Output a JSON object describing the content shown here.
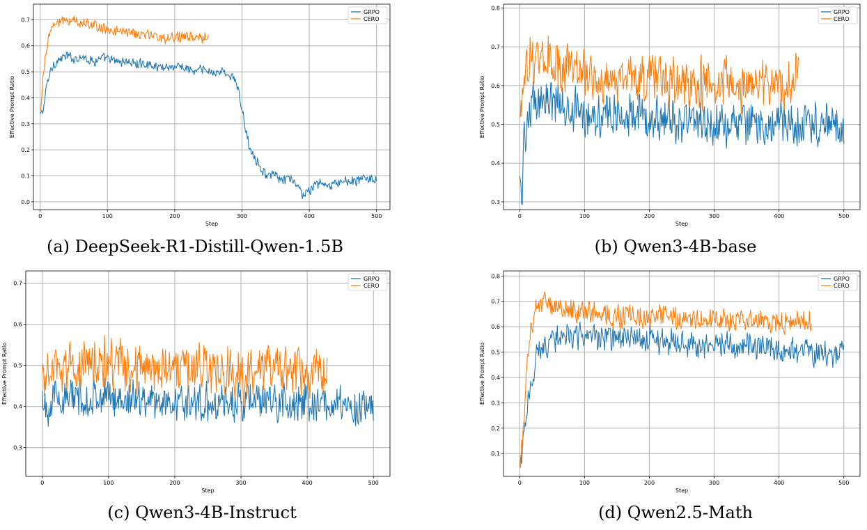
{
  "colors": {
    "grpo": "#1f77b4",
    "cero": "#ff7f0e",
    "grid": "#b0b0b0"
  },
  "chart_data": [
    {
      "type": "line",
      "caption": "(a) DeepSeek-R1-Distill-Qwen-1.5B",
      "xlabel": "Step",
      "ylabel": "Effective Prompt Ratio",
      "xlim": [
        -10,
        520
      ],
      "ylim": [
        -0.03,
        0.76
      ],
      "xticks": [
        0,
        100,
        200,
        300,
        400,
        500
      ],
      "yticks": [
        0.0,
        0.1,
        0.2,
        0.3,
        0.4,
        0.5,
        0.6,
        0.7
      ],
      "ytick_labels": [
        "0.0",
        "0.1",
        "0.2",
        "0.3",
        "0.4",
        "0.5",
        "0.6",
        "0.7"
      ],
      "grid": true,
      "legend_position": "top-right",
      "series": [
        {
          "name": "GRPO",
          "color": "#1f77b4",
          "x": [
            0,
            5,
            10,
            15,
            20,
            30,
            40,
            50,
            60,
            70,
            80,
            90,
            100,
            110,
            120,
            130,
            140,
            150,
            160,
            170,
            180,
            190,
            200,
            210,
            220,
            230,
            240,
            250,
            260,
            270,
            280,
            290,
            300,
            310,
            320,
            330,
            340,
            350,
            360,
            370,
            380,
            390,
            400,
            410,
            420,
            430,
            440,
            450,
            460,
            470,
            480,
            490,
            500
          ],
          "y": [
            0.33,
            0.36,
            0.45,
            0.5,
            0.53,
            0.55,
            0.56,
            0.55,
            0.56,
            0.55,
            0.54,
            0.55,
            0.55,
            0.54,
            0.54,
            0.54,
            0.53,
            0.53,
            0.53,
            0.52,
            0.52,
            0.52,
            0.52,
            0.52,
            0.51,
            0.5,
            0.51,
            0.5,
            0.5,
            0.5,
            0.49,
            0.47,
            0.36,
            0.22,
            0.17,
            0.12,
            0.1,
            0.1,
            0.08,
            0.09,
            0.07,
            0.03,
            0.04,
            0.07,
            0.07,
            0.06,
            0.07,
            0.08,
            0.08,
            0.08,
            0.09,
            0.09,
            0.08
          ]
        },
        {
          "name": "CERO",
          "color": "#ff7f0e",
          "x": [
            0,
            5,
            10,
            15,
            20,
            30,
            40,
            50,
            60,
            70,
            80,
            90,
            100,
            110,
            120,
            130,
            140,
            150,
            160,
            170,
            180,
            190,
            200,
            210,
            220,
            230,
            240,
            250
          ],
          "y": [
            0.34,
            0.5,
            0.6,
            0.66,
            0.68,
            0.69,
            0.7,
            0.7,
            0.69,
            0.68,
            0.68,
            0.67,
            0.66,
            0.66,
            0.65,
            0.65,
            0.65,
            0.64,
            0.64,
            0.64,
            0.63,
            0.63,
            0.64,
            0.63,
            0.63,
            0.63,
            0.63,
            0.64
          ]
        }
      ]
    },
    {
      "type": "line",
      "caption": "(b) Qwen3-4B-base",
      "xlabel": "Step",
      "ylabel": "Effective Prompt Ratio",
      "xlim": [
        -25,
        525
      ],
      "ylim": [
        0.28,
        0.81
      ],
      "xticks": [
        0,
        100,
        200,
        300,
        400,
        500
      ],
      "yticks": [
        0.3,
        0.4,
        0.5,
        0.6,
        0.7,
        0.8
      ],
      "ytick_labels": [
        "0.3",
        "0.4",
        "0.5",
        "0.6",
        "0.7",
        "0.8"
      ],
      "grid": true,
      "legend_position": "top-right",
      "series": [
        {
          "name": "GRPO",
          "color": "#1f77b4",
          "x": [
            0,
            3,
            6,
            10,
            15,
            20,
            30,
            40,
            50,
            60,
            70,
            80,
            90,
            100,
            120,
            140,
            160,
            180,
            200,
            220,
            240,
            260,
            280,
            300,
            320,
            340,
            360,
            380,
            400,
            420,
            440,
            460,
            480,
            500
          ],
          "y": [
            0.36,
            0.3,
            0.45,
            0.5,
            0.53,
            0.55,
            0.56,
            0.57,
            0.56,
            0.55,
            0.54,
            0.54,
            0.53,
            0.53,
            0.53,
            0.52,
            0.52,
            0.52,
            0.52,
            0.51,
            0.51,
            0.51,
            0.51,
            0.5,
            0.5,
            0.5,
            0.5,
            0.5,
            0.5,
            0.5,
            0.5,
            0.5,
            0.5,
            0.47
          ]
        },
        {
          "name": "CERO",
          "color": "#ff7f0e",
          "x": [
            0,
            3,
            6,
            10,
            15,
            20,
            30,
            40,
            50,
            60,
            70,
            80,
            90,
            100,
            120,
            140,
            160,
            180,
            200,
            220,
            240,
            260,
            280,
            300,
            320,
            340,
            360,
            380,
            400,
            420,
            430
          ],
          "y": [
            0.52,
            0.55,
            0.62,
            0.66,
            0.67,
            0.68,
            0.67,
            0.66,
            0.67,
            0.65,
            0.64,
            0.64,
            0.63,
            0.63,
            0.62,
            0.62,
            0.62,
            0.62,
            0.62,
            0.62,
            0.61,
            0.61,
            0.61,
            0.61,
            0.61,
            0.6,
            0.6,
            0.6,
            0.6,
            0.6,
            0.66
          ]
        }
      ]
    },
    {
      "type": "line",
      "caption": "(c) Qwen3-4B-Instruct",
      "xlabel": "Step",
      "ylabel": "Effective Prompt Ratio",
      "xlim": [
        -25,
        525
      ],
      "ylim": [
        0.23,
        0.73
      ],
      "xticks": [
        0,
        100,
        200,
        300,
        400,
        500
      ],
      "yticks": [
        0.3,
        0.4,
        0.5,
        0.6,
        0.7
      ],
      "ytick_labels": [
        "0.3",
        "0.4",
        "0.5",
        "0.6",
        "0.7"
      ],
      "grid": true,
      "legend_position": "top-right",
      "series": [
        {
          "name": "GRPO",
          "color": "#1f77b4",
          "x": [
            0,
            10,
            20,
            40,
            60,
            80,
            100,
            120,
            140,
            160,
            180,
            200,
            220,
            240,
            260,
            280,
            300,
            320,
            340,
            360,
            380,
            400,
            420,
            440,
            460,
            480,
            500
          ],
          "y": [
            0.42,
            0.4,
            0.42,
            0.42,
            0.42,
            0.42,
            0.42,
            0.42,
            0.42,
            0.42,
            0.41,
            0.41,
            0.41,
            0.41,
            0.41,
            0.41,
            0.41,
            0.41,
            0.41,
            0.41,
            0.41,
            0.41,
            0.41,
            0.4,
            0.4,
            0.39,
            0.4
          ]
        },
        {
          "name": "CERO",
          "color": "#ff7f0e",
          "x": [
            0,
            10,
            20,
            40,
            60,
            80,
            100,
            120,
            140,
            160,
            180,
            200,
            220,
            240,
            260,
            280,
            300,
            320,
            340,
            360,
            380,
            400,
            420,
            430
          ],
          "y": [
            0.46,
            0.48,
            0.49,
            0.49,
            0.5,
            0.5,
            0.5,
            0.5,
            0.49,
            0.49,
            0.49,
            0.5,
            0.49,
            0.49,
            0.49,
            0.49,
            0.48,
            0.48,
            0.49,
            0.49,
            0.49,
            0.49,
            0.48,
            0.47
          ]
        }
      ]
    },
    {
      "type": "line",
      "caption": "(d) Qwen2.5-Math",
      "xlabel": "Step",
      "ylabel": "Effective Prompt Ratio",
      "xlim": [
        -25,
        525
      ],
      "ylim": [
        0.01,
        0.82
      ],
      "xticks": [
        0,
        100,
        200,
        300,
        400,
        500
      ],
      "yticks": [
        0.1,
        0.2,
        0.3,
        0.4,
        0.5,
        0.6,
        0.7,
        0.8
      ],
      "ytick_labels": [
        "0.1",
        "0.2",
        "0.3",
        "0.4",
        "0.5",
        "0.6",
        "0.7",
        "0.8"
      ],
      "grid": true,
      "legend_position": "top-right",
      "series": [
        {
          "name": "GRPO",
          "color": "#1f77b4",
          "x": [
            0,
            3,
            6,
            10,
            15,
            20,
            25,
            30,
            40,
            50,
            60,
            80,
            100,
            120,
            140,
            160,
            180,
            200,
            220,
            240,
            260,
            280,
            300,
            320,
            340,
            360,
            380,
            400,
            420,
            440,
            460,
            480,
            500
          ],
          "y": [
            0.05,
            0.08,
            0.15,
            0.25,
            0.35,
            0.42,
            0.47,
            0.5,
            0.53,
            0.55,
            0.56,
            0.56,
            0.56,
            0.56,
            0.55,
            0.55,
            0.55,
            0.55,
            0.55,
            0.54,
            0.53,
            0.53,
            0.53,
            0.53,
            0.52,
            0.52,
            0.52,
            0.51,
            0.51,
            0.5,
            0.5,
            0.5,
            0.5
          ]
        },
        {
          "name": "CERO",
          "color": "#ff7f0e",
          "x": [
            0,
            3,
            6,
            10,
            15,
            20,
            25,
            30,
            40,
            50,
            60,
            80,
            100,
            120,
            140,
            160,
            180,
            200,
            220,
            240,
            260,
            280,
            300,
            320,
            340,
            360,
            380,
            400,
            420,
            440,
            450
          ],
          "y": [
            0.07,
            0.12,
            0.2,
            0.4,
            0.55,
            0.62,
            0.66,
            0.68,
            0.69,
            0.69,
            0.68,
            0.67,
            0.66,
            0.65,
            0.64,
            0.64,
            0.64,
            0.64,
            0.64,
            0.63,
            0.63,
            0.63,
            0.63,
            0.62,
            0.62,
            0.62,
            0.62,
            0.62,
            0.62,
            0.62,
            0.61
          ]
        }
      ]
    }
  ]
}
